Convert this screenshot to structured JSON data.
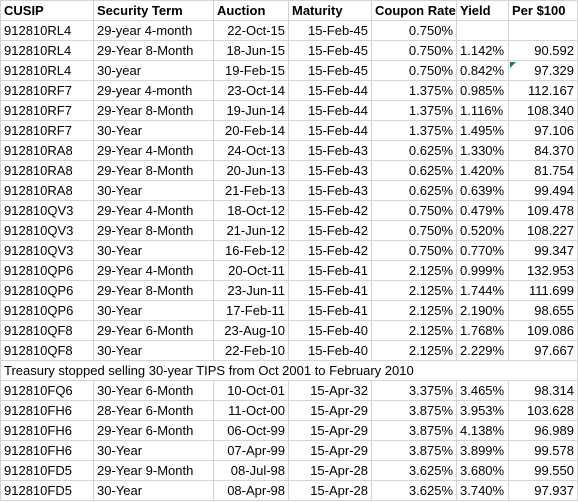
{
  "headers": [
    "CUSIP",
    "Security Term",
    "Auction",
    "Maturity",
    "Coupon Rate",
    "Yield",
    "Per $100"
  ],
  "rows_top": [
    [
      "912810RL4",
      "29-year 4-month",
      "22-Oct-15",
      "15-Feb-45",
      "0.750%",
      "",
      ""
    ],
    [
      "912810RL4",
      "29-Year 8-Month",
      "18-Jun-15",
      "15-Feb-45",
      "0.750%",
      "1.142%",
      "90.592"
    ],
    [
      "912810RL4",
      "30-year",
      "19-Feb-15",
      "15-Feb-45",
      "0.750%",
      "0.842%",
      "97.329"
    ],
    [
      "912810RF7",
      "29-year 4-month",
      "23-Oct-14",
      "15-Feb-44",
      "1.375%",
      "0.985%",
      "112.167"
    ],
    [
      "912810RF7",
      "29-Year 8-Month",
      "19-Jun-14",
      "15-Feb-44",
      "1.375%",
      "1.116%",
      "108.340"
    ],
    [
      "912810RF7",
      "30-Year",
      "20-Feb-14",
      "15-Feb-44",
      "1.375%",
      "1.495%",
      "97.106"
    ],
    [
      "912810RA8",
      "29-Year 4-Month",
      "24-Oct-13",
      "15-Feb-43",
      "0.625%",
      "1.330%",
      "84.370"
    ],
    [
      "912810RA8",
      "29-Year 8-Month",
      "20-Jun-13",
      "15-Feb-43",
      "0.625%",
      "1.420%",
      "81.754"
    ],
    [
      "912810RA8",
      "30-Year",
      "21-Feb-13",
      "15-Feb-43",
      "0.625%",
      "0.639%",
      "99.494"
    ],
    [
      "912810QV3",
      "29-Year 4-Month",
      "18-Oct-12",
      "15-Feb-42",
      "0.750%",
      "0.479%",
      "109.478"
    ],
    [
      "912810QV3",
      "29-Year 8-Month",
      "21-Jun-12",
      "15-Feb-42",
      "0.750%",
      "0.520%",
      "108.227"
    ],
    [
      "912810QV3",
      "30-Year",
      "16-Feb-12",
      "15-Feb-42",
      "0.750%",
      "0.770%",
      "99.347"
    ],
    [
      "912810QP6",
      "29-Year 4-Month",
      "20-Oct-11",
      "15-Feb-41",
      "2.125%",
      "0.999%",
      "132.953"
    ],
    [
      "912810QP6",
      "29-Year 8-Month",
      "23-Jun-11",
      "15-Feb-41",
      "2.125%",
      "1.744%",
      "111.699"
    ],
    [
      "912810QP6",
      "30-Year",
      "17-Feb-11",
      "15-Feb-41",
      "2.125%",
      "2.190%",
      "98.655"
    ],
    [
      "912810QF8",
      "29-Year 6-Month",
      "23-Aug-10",
      "15-Feb-40",
      "2.125%",
      "1.768%",
      "109.086"
    ],
    [
      "912810QF8",
      "30-Year",
      "22-Feb-10",
      "15-Feb-40",
      "2.125%",
      "2.229%",
      "97.667"
    ]
  ],
  "note": "Treasury stopped selling 30-year TIPS from Oct 2001 to February 2010",
  "rows_bottom": [
    [
      "912810FQ6",
      "30-Year 6-Month",
      "10-Oct-01",
      "15-Apr-32",
      "3.375%",
      "3.465%",
      "98.314"
    ],
    [
      "912810FH6",
      "28-Year 6-Month",
      "11-Oct-00",
      "15-Apr-29",
      "3.875%",
      "3.953%",
      "103.628"
    ],
    [
      "912810FH6",
      "29-Year 6-Month",
      "06-Oct-99",
      "15-Apr-29",
      "3.875%",
      "4.138%",
      "96.989"
    ],
    [
      "912810FH6",
      "30-Year",
      "07-Apr-99",
      "15-Apr-29",
      "3.875%",
      "3.899%",
      "99.578"
    ],
    [
      "912810FD5",
      "29-Year 9-Month",
      "08-Jul-98",
      "15-Apr-28",
      "3.625%",
      "3.680%",
      "99.550"
    ],
    [
      "912810FD5",
      "30-Year",
      "08-Apr-98",
      "15-Apr-28",
      "3.625%",
      "3.740%",
      "97.937"
    ]
  ],
  "colors": {
    "gridline": "#d4d4d4",
    "comment_indicator": "#1e7b34"
  }
}
